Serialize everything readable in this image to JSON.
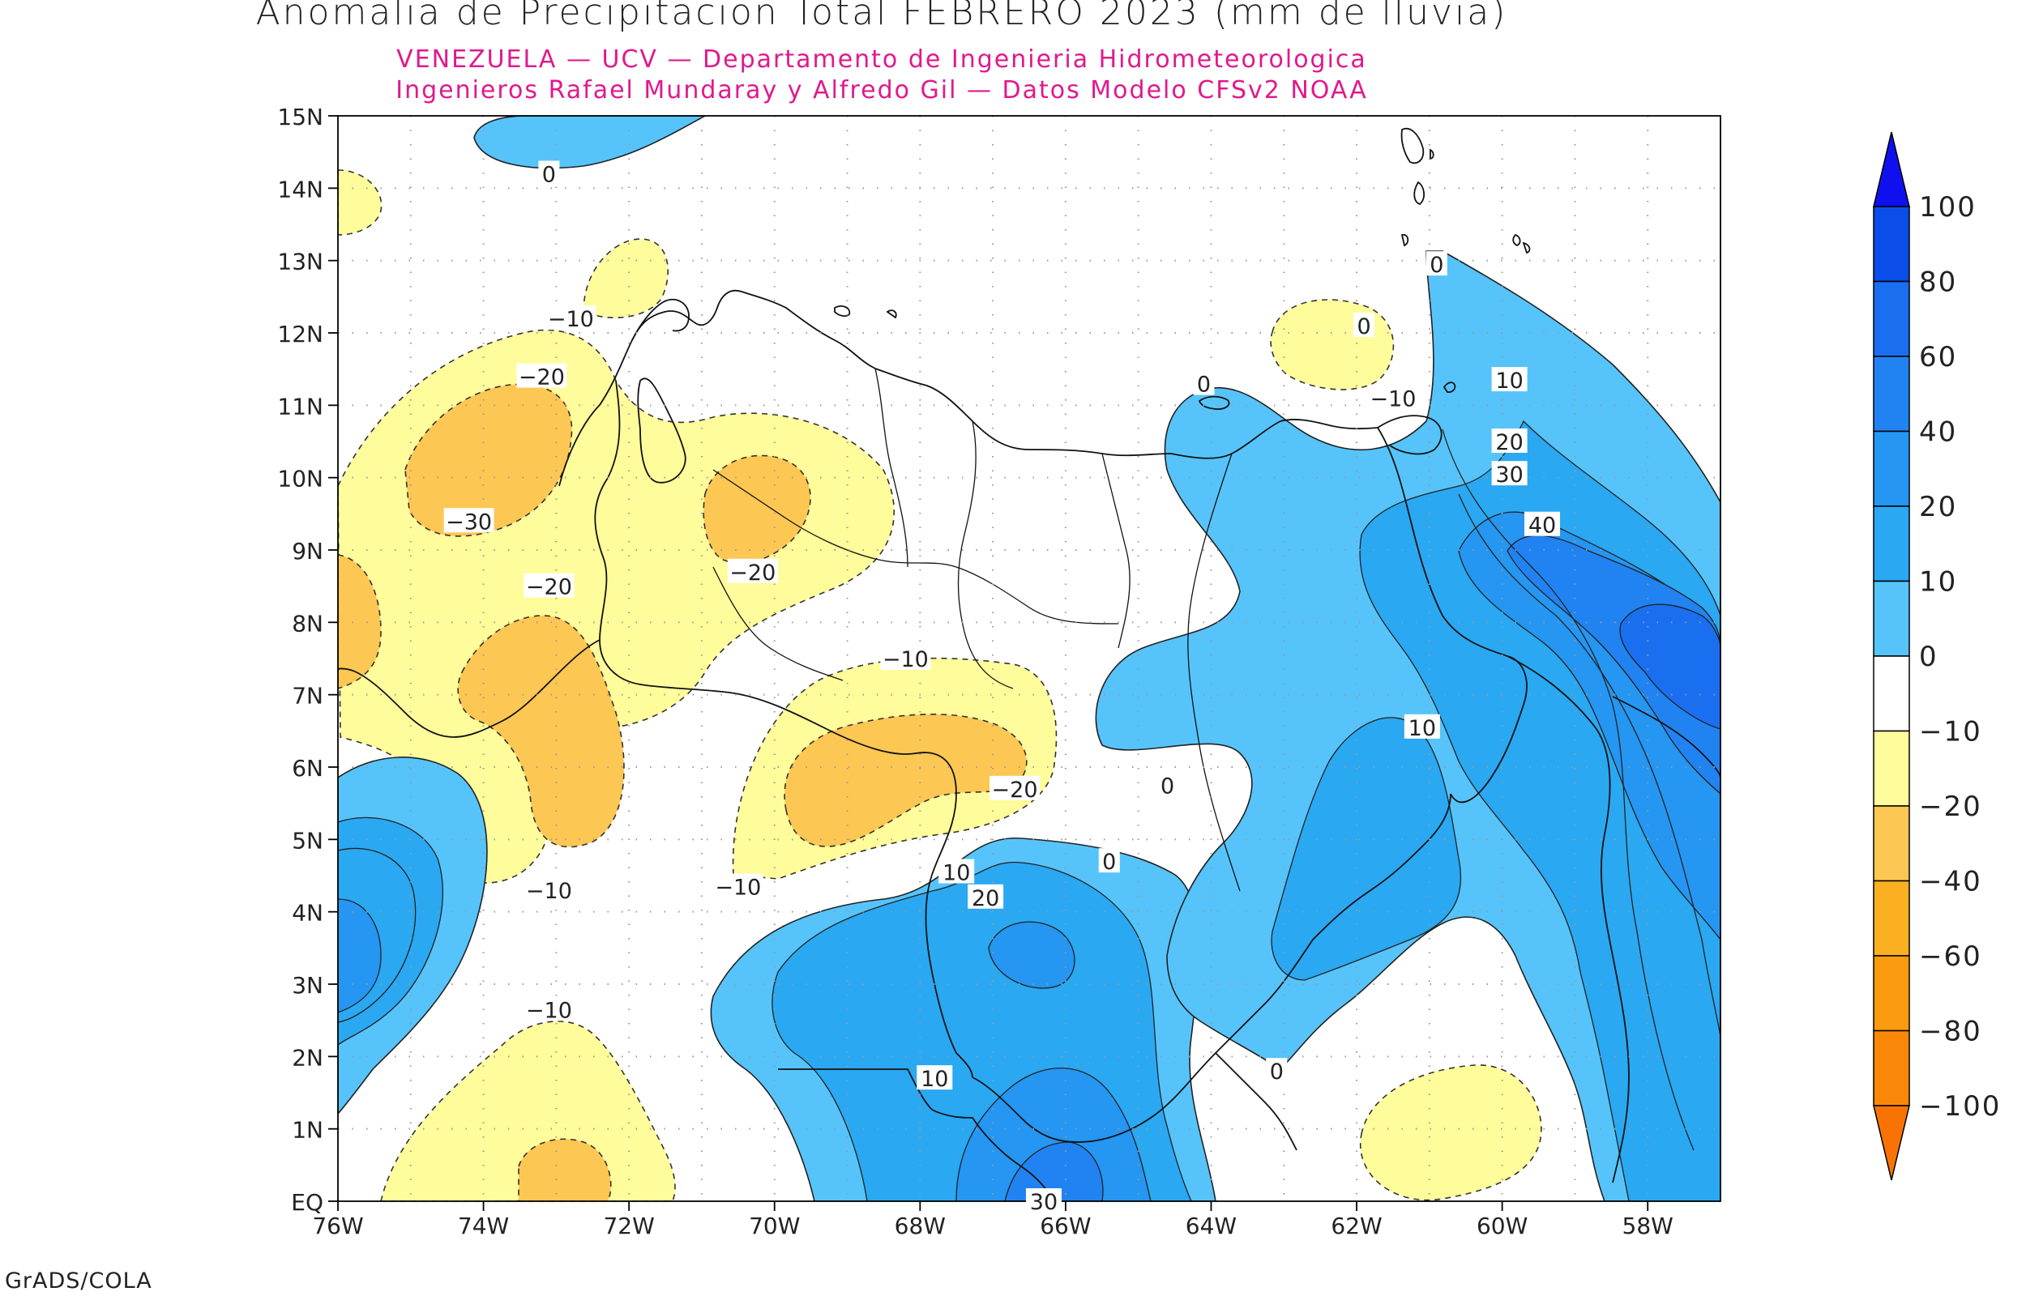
{
  "title": "Anomalia de Precipitacion Total FEBRERO 2023 (mm de lluvia)",
  "subtitle_1": "VENEZUELA — UCV — Departamento de Ingenieria Hidrometeorologica",
  "subtitle_2": "Ingenieros Rafael Mundaray y Alfredo Gil — Datos Modelo CFSv2 NOAA",
  "footer": "GrADS/COLA",
  "colors": {
    "subtitle": "#e0198c",
    "frame": "#000000",
    "grid": "#9a9a9a"
  },
  "map": {
    "lat_labels": [
      "EQ",
      "1N",
      "2N",
      "3N",
      "4N",
      "5N",
      "6N",
      "7N",
      "8N",
      "9N",
      "10N",
      "11N",
      "12N",
      "13N",
      "14N",
      "15N"
    ],
    "lon_labels": [
      "76W",
      "74W",
      "72W",
      "70W",
      "68W",
      "66W",
      "64W",
      "62W",
      "60W",
      "58W"
    ],
    "lat_range": [
      0,
      15
    ],
    "lon_range": [
      -76,
      -57
    ],
    "contour_labels": [
      {
        "text": "0",
        "lon": -73.1,
        "lat": 14.2
      },
      {
        "text": "−10",
        "lon": -72.8,
        "lat": 12.2
      },
      {
        "text": "−20",
        "lon": -73.2,
        "lat": 11.4
      },
      {
        "text": "−30",
        "lon": -74.2,
        "lat": 9.4
      },
      {
        "text": "−20",
        "lon": -73.1,
        "lat": 8.5
      },
      {
        "text": "−20",
        "lon": -70.3,
        "lat": 8.7
      },
      {
        "text": "−10",
        "lon": -68.2,
        "lat": 7.5
      },
      {
        "text": "−20",
        "lon": -66.7,
        "lat": 5.7
      },
      {
        "text": "−10",
        "lon": -73.1,
        "lat": 4.3
      },
      {
        "text": "−10",
        "lon": -70.5,
        "lat": 4.35
      },
      {
        "text": "−10",
        "lon": -73.1,
        "lat": 2.65
      },
      {
        "text": "10",
        "lon": -67.5,
        "lat": 4.55
      },
      {
        "text": "20",
        "lon": -67.1,
        "lat": 4.2
      },
      {
        "text": "0",
        "lon": -65.4,
        "lat": 4.7
      },
      {
        "text": "0",
        "lon": -64.6,
        "lat": 5.75
      },
      {
        "text": "10",
        "lon": -67.8,
        "lat": 1.7
      },
      {
        "text": "30",
        "lon": -66.3,
        "lat": 0.0
      },
      {
        "text": "0",
        "lon": -63.1,
        "lat": 1.8
      },
      {
        "text": "10",
        "lon": -61.1,
        "lat": 6.55
      },
      {
        "text": "0",
        "lon": -61.9,
        "lat": 12.1
      },
      {
        "text": "−10",
        "lon": -61.5,
        "lat": 11.1
      },
      {
        "text": "0",
        "lon": -64.1,
        "lat": 11.3
      },
      {
        "text": "0",
        "lon": -60.9,
        "lat": 12.95
      },
      {
        "text": "10",
        "lon": -59.9,
        "lat": 11.35
      },
      {
        "text": "20",
        "lon": -59.9,
        "lat": 10.5
      },
      {
        "text": "30",
        "lon": -59.9,
        "lat": 10.05
      },
      {
        "text": "40",
        "lon": -59.45,
        "lat": 9.35
      }
    ]
  },
  "colorbar": {
    "labels": [
      "100",
      "80",
      "60",
      "40",
      "20",
      "10",
      "0",
      "−10",
      "−20",
      "−40",
      "−60",
      "−80",
      "−100"
    ],
    "colors": [
      "#0b4de8",
      "#1a6ff0",
      "#2183f2",
      "#2596f2",
      "#2aa8f2",
      "#56c4fb",
      "#ffffff",
      "#fffc9b",
      "#fdc754",
      "#fbb022",
      "#fb9c10",
      "#f98808"
    ],
    "top_color": "#1010ee",
    "bottom_color": "#f97304"
  }
}
